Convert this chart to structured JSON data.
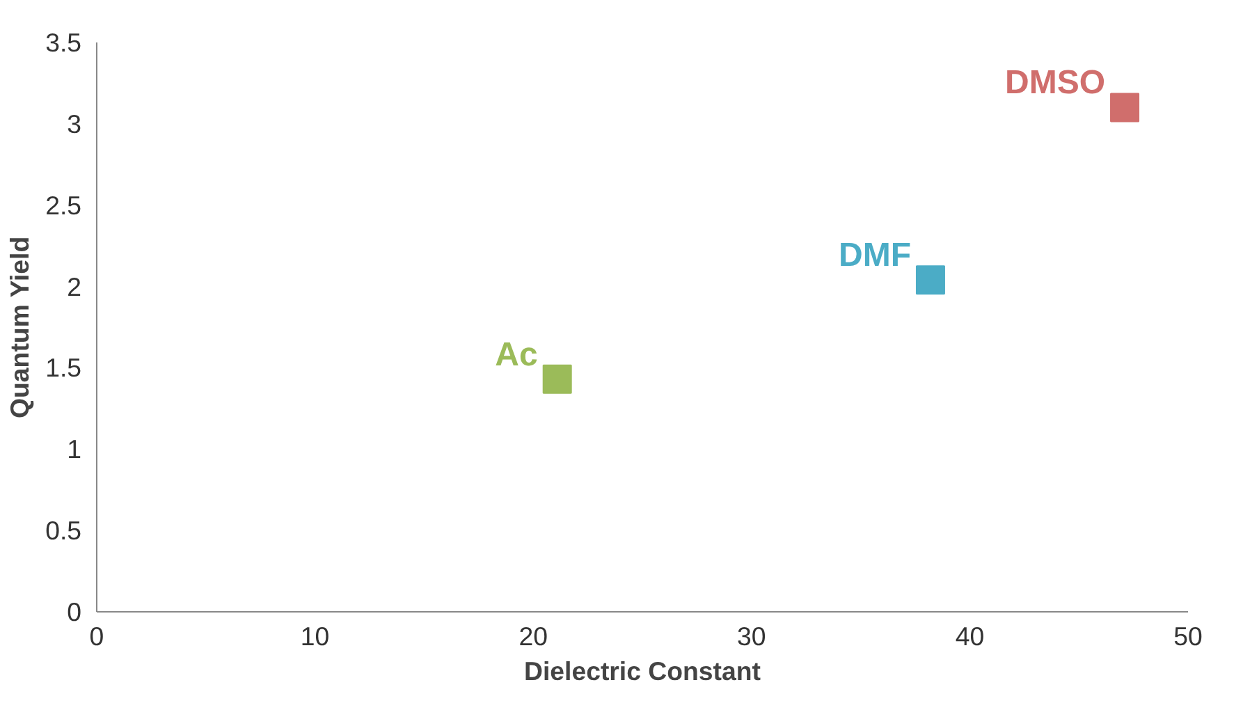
{
  "chart_data": {
    "type": "scatter",
    "xlabel": "Dielectric Constant",
    "ylabel": "Quantum Yield",
    "xlim": [
      0,
      50
    ],
    "xticks": [
      0,
      10,
      20,
      30,
      40,
      50
    ],
    "ylim": [
      0,
      3.5
    ],
    "yticks": [
      0,
      0.5,
      1,
      1.5,
      2,
      2.5,
      3,
      3.5
    ],
    "grid": false,
    "legend": false,
    "marker": "square",
    "series": [
      {
        "name": "Ac",
        "color": "#9bbb59",
        "x": [
          21.1
        ],
        "values": [
          1.43
        ]
      },
      {
        "name": "DMF",
        "color": "#4bacc6",
        "x": [
          38.2
        ],
        "values": [
          2.04
        ]
      },
      {
        "name": "DMSO",
        "color": "#d06e6c",
        "x": [
          47.1
        ],
        "values": [
          3.1
        ]
      }
    ]
  }
}
